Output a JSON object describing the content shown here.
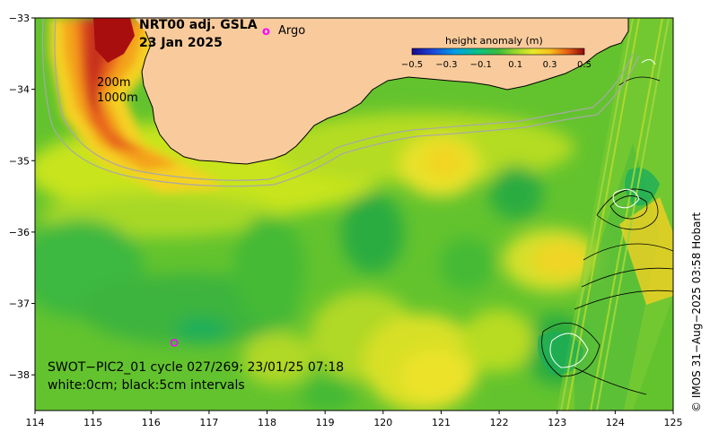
{
  "title": {
    "product": "NRT00 adj. GSLA",
    "date": "23 Jan 2025"
  },
  "legend": {
    "argo_symbol": "o",
    "argo_label": "Argo",
    "argo_color": "#ff00ff"
  },
  "colorbar": {
    "title": "height anomaly (m)",
    "min": -0.5,
    "max": 0.5,
    "tick_values": [
      -0.5,
      -0.3,
      -0.1,
      0.1,
      0.3,
      0.5
    ],
    "tick_labels": [
      "−0.5",
      "−0.3",
      "−0.1",
      "0.1",
      "0.3",
      "0.5"
    ]
  },
  "depth_labels": {
    "shallow": "200m",
    "deep": "1000m"
  },
  "axes": {
    "x_ticks": [
      "114",
      "115",
      "116",
      "117",
      "118",
      "119",
      "120",
      "121",
      "122",
      "123",
      "124",
      "125"
    ],
    "y_ticks": [
      "−33",
      "−34",
      "−35",
      "−36",
      "−37",
      "−38"
    ],
    "lon_range": [
      114,
      125
    ],
    "lat_range": [
      -33,
      -38.5
    ]
  },
  "swot": {
    "line1": "SWOT−PIC2_01 cycle 027/269; 23/01/25 07:18",
    "line2": "white:0cm; black:5cm intervals"
  },
  "argo_float": {
    "lon": 116.4,
    "lat": -37.55
  },
  "credit": "© IMOS 31−Aug−2025 03:58 Hobart",
  "colors": {
    "land": "#f9cb9c",
    "ocean_base": "#63c32e",
    "coastline": "#000000",
    "isobath": "#a8a8a8"
  }
}
